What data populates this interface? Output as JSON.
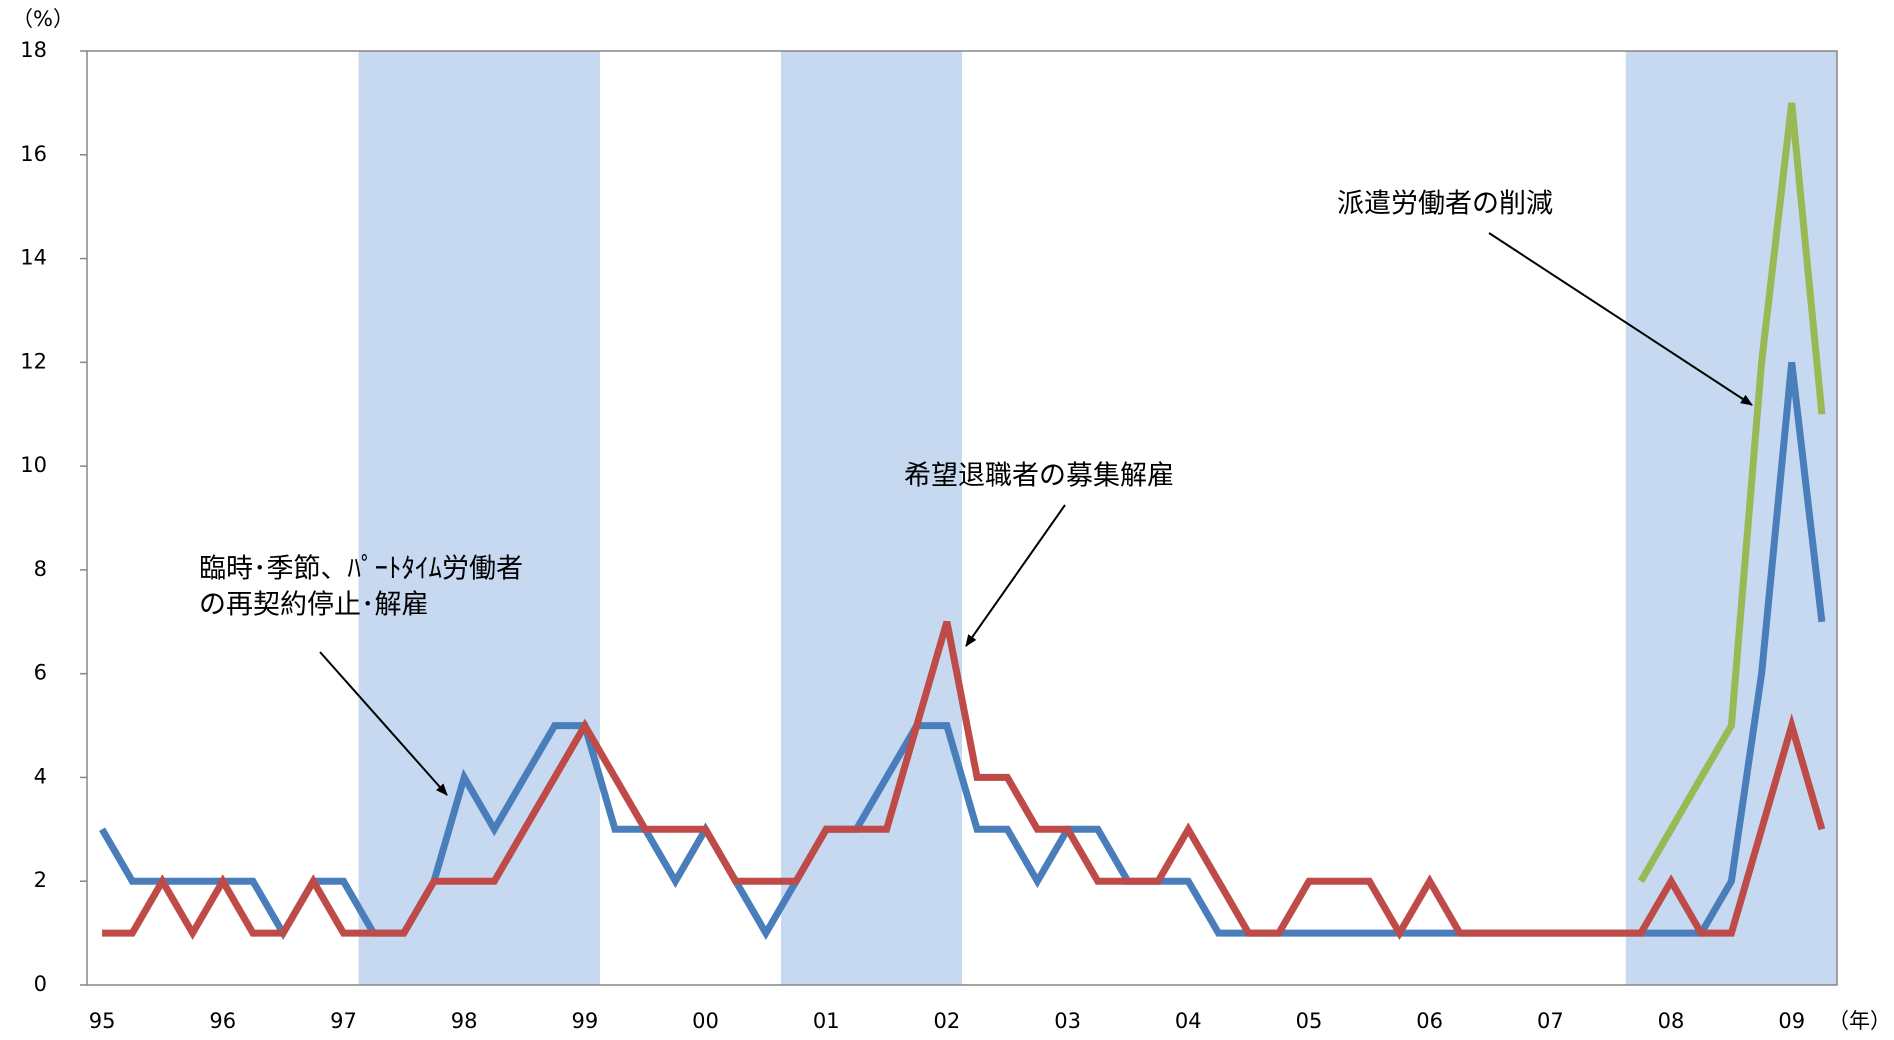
{
  "chart_data": {
    "type": "line",
    "y_unit": "（%）",
    "x_unit": "（年）",
    "categories": [
      "95",
      null,
      null,
      null,
      "96",
      null,
      null,
      null,
      "97",
      null,
      null,
      null,
      "98",
      null,
      null,
      null,
      "99",
      null,
      null,
      null,
      "00",
      null,
      null,
      null,
      "01",
      null,
      null,
      null,
      "02",
      null,
      null,
      null,
      "03",
      null,
      null,
      null,
      "04",
      null,
      null,
      null,
      "05",
      null,
      null,
      null,
      "06",
      null,
      null,
      null,
      "07",
      null,
      null,
      null,
      "08",
      null,
      null,
      null,
      "09",
      null
    ],
    "series": [
      {
        "color": "#4a7ebb",
        "values": [
          3,
          2,
          2,
          2,
          2,
          2,
          1,
          2,
          2,
          1,
          1,
          2,
          4,
          3,
          4,
          5,
          5,
          3,
          3,
          2,
          3,
          2,
          1,
          2,
          3,
          3,
          4,
          5,
          5,
          3,
          3,
          2,
          3,
          3,
          2,
          2,
          2,
          1,
          1,
          1,
          1,
          1,
          1,
          1,
          1,
          1,
          1,
          1,
          1,
          1,
          1,
          1,
          1,
          1,
          2,
          6,
          12,
          7
        ]
      },
      {
        "color": "#be4b48",
        "values": [
          1,
          1,
          2,
          1,
          2,
          1,
          1,
          2,
          1,
          1,
          1,
          2,
          2,
          2,
          3,
          4,
          5,
          4,
          3,
          3,
          3,
          2,
          2,
          2,
          3,
          3,
          3,
          5,
          7,
          4,
          4,
          3,
          3,
          2,
          2,
          2,
          3,
          2,
          1,
          1,
          2,
          2,
          2,
          1,
          2,
          1,
          1,
          1,
          1,
          1,
          1,
          1,
          2,
          1,
          1,
          3,
          5,
          3
        ]
      },
      {
        "color": "#98b954",
        "values": [
          null,
          null,
          null,
          null,
          null,
          null,
          null,
          null,
          null,
          null,
          null,
          null,
          null,
          null,
          null,
          null,
          null,
          null,
          null,
          null,
          null,
          null,
          null,
          null,
          null,
          null,
          null,
          null,
          null,
          null,
          null,
          null,
          null,
          null,
          null,
          null,
          null,
          null,
          null,
          null,
          null,
          null,
          null,
          null,
          null,
          null,
          null,
          null,
          null,
          null,
          null,
          2,
          3,
          4,
          5,
          12,
          17,
          11
        ]
      }
    ],
    "recession_quarters": [
      [
        9,
        16
      ],
      [
        23,
        28
      ],
      [
        51,
        57
      ]
    ],
    "recession_color": "#c6d9f1",
    "ylim": [
      0,
      18
    ],
    "yticks": [
      0,
      2,
      4,
      6,
      8,
      10,
      12,
      14,
      16,
      18
    ],
    "annotations": [
      {
        "lines": [
          "臨時･季節、ﾊﾟｰﾄﾀｲﾑ労働者",
          "の再契約停止･解雇"
        ]
      },
      {
        "lines": [
          "希望退職者の募集解雇"
        ]
      },
      {
        "lines": [
          "派遣労働者の削減"
        ]
      }
    ]
  }
}
